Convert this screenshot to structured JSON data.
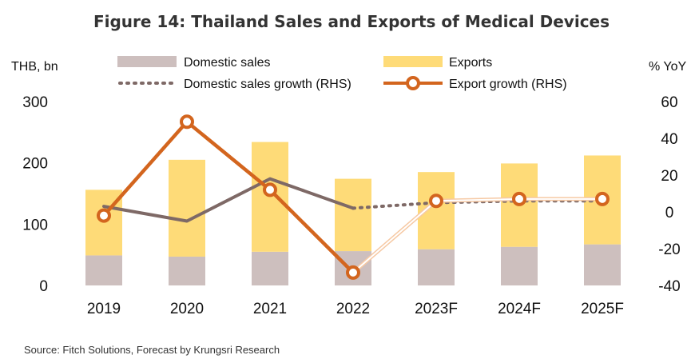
{
  "colors": {
    "domestic_bar": "#cdbfbe",
    "exports_bar": "#fedb78",
    "domestic_growth": "#7e6966",
    "export_growth": "#d3651e",
    "export_forecast_fill": "#f6c9a4"
  },
  "chart_data": {
    "type": "bar",
    "title": "Figure 14: Thailand Sales and Exports of Medical Devices",
    "ylabel": "THB, bn",
    "y2label": "% YoY",
    "ylim": [
      0,
      300
    ],
    "y2lim": [
      -40,
      60
    ],
    "yticks": [
      "0",
      "100",
      "200",
      "300"
    ],
    "y2ticks": [
      "-40",
      "-20",
      "0",
      "20",
      "40",
      "60"
    ],
    "categories": [
      "2019",
      "2020",
      "2021",
      "2022",
      "2023F",
      "2024F",
      "2025F"
    ],
    "stacked": true,
    "legend_position": "top",
    "grid": false,
    "series": [
      {
        "name": "Domestic sales",
        "kind": "bar",
        "axis": "left",
        "values": [
          49,
          47,
          55,
          56,
          59,
          63,
          67
        ]
      },
      {
        "name": "Exports",
        "kind": "bar",
        "axis": "left",
        "values": [
          107,
          158,
          179,
          118,
          126,
          136,
          145
        ]
      },
      {
        "name": "Domestic sales growth (RHS)",
        "kind": "line",
        "axis": "right",
        "values": [
          3,
          -5,
          18,
          2,
          5,
          6,
          6
        ],
        "dashed_from_index": 3
      },
      {
        "name": "Export growth (RHS)",
        "kind": "line",
        "axis": "right",
        "values": [
          -2,
          49,
          12,
          -33,
          6,
          7,
          7
        ],
        "hollow_from_index": 3
      }
    ],
    "source": "Source: Fitch Solutions, Forecast by Krungsri Research"
  }
}
